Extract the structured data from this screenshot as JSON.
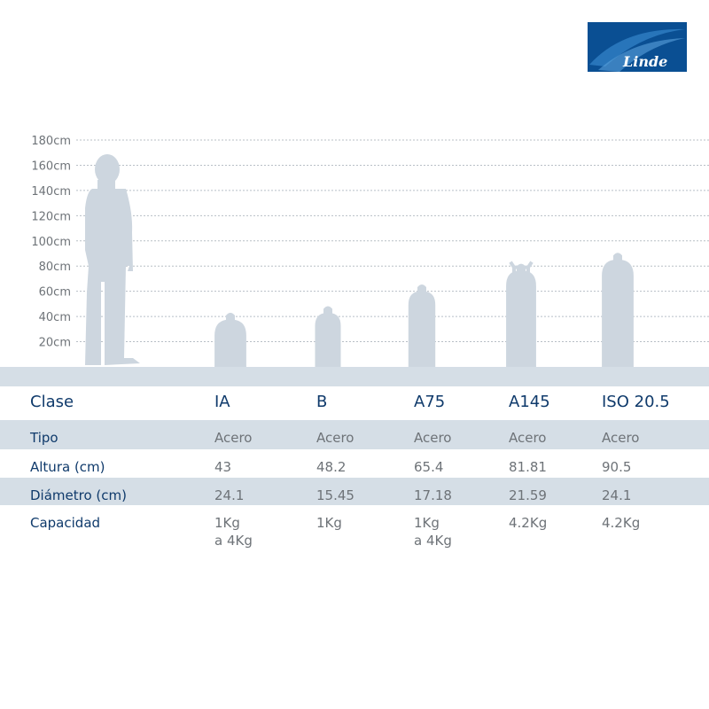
{
  "logo": {
    "text": "Linde",
    "bg_color": "#0a4f93"
  },
  "chart_data": {
    "type": "bar",
    "ylabel": "",
    "ylim": [
      0,
      180
    ],
    "yticks": [
      20,
      40,
      60,
      80,
      100,
      120,
      140,
      160,
      180
    ],
    "ytick_labels": [
      "20cm",
      "40cm",
      "60cm",
      "80cm",
      "100cm",
      "120cm",
      "140cm",
      "160cm",
      "180cm"
    ],
    "grid": true,
    "reference_figure": {
      "label": "",
      "height": 170
    },
    "categories": [
      "IA",
      "B",
      "A75",
      "A145",
      "ISO 20.5"
    ],
    "values": [
      43,
      48.2,
      65.4,
      81.81,
      90.5
    ],
    "diameters": [
      24.1,
      15.45,
      17.18,
      21.59,
      24.1
    ],
    "color": "#cdd6df"
  },
  "table": {
    "header": {
      "label": "Clase",
      "values": [
        "IA",
        "B",
        "A75",
        "A145",
        "ISO 20.5"
      ]
    },
    "rows": [
      {
        "label": "Tipo",
        "values": [
          [
            "Acero"
          ],
          [
            "Acero"
          ],
          [
            "Acero"
          ],
          [
            "Acero"
          ],
          [
            "Acero"
          ]
        ]
      },
      {
        "label": "Altura (cm)",
        "values": [
          [
            "43"
          ],
          [
            "48.2"
          ],
          [
            "65.4"
          ],
          [
            "81.81"
          ],
          [
            "90.5"
          ]
        ]
      },
      {
        "label": "Diámetro (cm)",
        "values": [
          [
            "24.1"
          ],
          [
            "15.45"
          ],
          [
            "17.18"
          ],
          [
            "21.59"
          ],
          [
            "24.1"
          ]
        ]
      },
      {
        "label": "Capacidad",
        "values": [
          [
            "1Kg",
            "a 4Kg"
          ],
          [
            "1Kg"
          ],
          [
            "1Kg",
            "a 4Kg"
          ],
          [
            "4.2Kg"
          ],
          [
            "4.2Kg"
          ]
        ]
      }
    ]
  }
}
